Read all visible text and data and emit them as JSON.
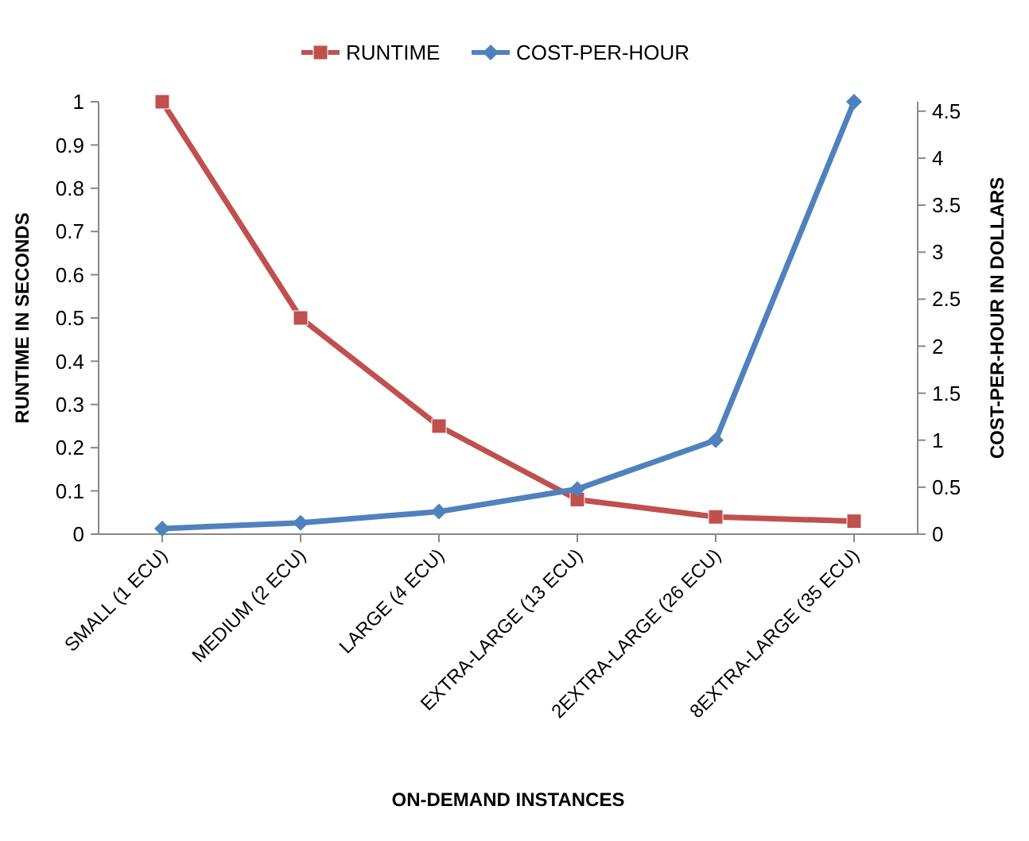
{
  "chart_data": {
    "type": "line",
    "xlabel": "ON-DEMAND INSTANCES",
    "ylabel": "RUNTIME IN SECONDS",
    "y2label": "COST-PER-HOUR IN DOLLARS",
    "categories": [
      "SMALL (1 ECU)",
      "MEDIUM (2 ECU)",
      "LARGE (4 ECU)",
      "EXTRA-LARGE (13 ECU)",
      "2EXTRA-LARGE (26 ECU)",
      "8EXTRA-LARGE (35 ECU)"
    ],
    "series": [
      {
        "name": "RUNTIME",
        "color": "#c0504d",
        "marker": "square",
        "values": [
          1,
          0.5,
          0.25,
          0.08,
          0.04,
          0.03
        ]
      },
      {
        "name": "COST-PER-HOUR",
        "color": "#4f81bd",
        "marker": "diamond",
        "axis": "y2",
        "values": [
          0.06,
          0.12,
          0.24,
          0.48,
          1.0,
          4.6
        ]
      }
    ],
    "ylim": [
      0,
      1
    ],
    "yticks": [
      0,
      0.1,
      0.2,
      0.3,
      0.4,
      0.5,
      0.6,
      0.7,
      0.8,
      0.9,
      1
    ],
    "y2lim": [
      0,
      4.6
    ],
    "y2ticks": [
      0,
      0.5,
      1,
      1.5,
      2,
      2.5,
      3,
      3.5,
      4,
      4.5
    ],
    "grid": false,
    "legend": "top"
  }
}
